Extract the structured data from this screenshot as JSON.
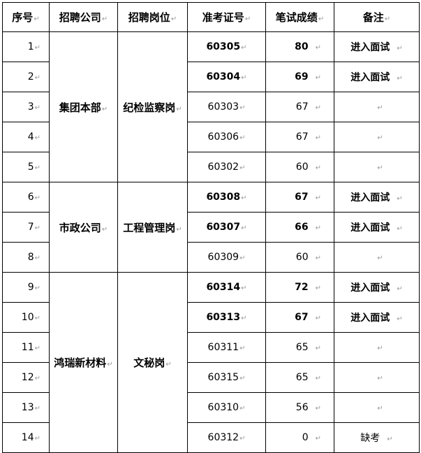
{
  "headers": [
    "序号",
    "招聘公司",
    "招聘岗位",
    "准考证号",
    "笔试成绩",
    "备注"
  ],
  "groups": [
    {
      "company": "集团本部",
      "position": "纪检监察岗",
      "rows": [
        {
          "no": "1",
          "id": "60305",
          "score": "80",
          "note": "进入面试"
        },
        {
          "no": "2",
          "id": "60304",
          "score": "69",
          "note": "进入面试"
        },
        {
          "no": "3",
          "id": "60303",
          "score": "67",
          "note": ""
        },
        {
          "no": "4",
          "id": "60306",
          "score": "67",
          "note": ""
        },
        {
          "no": "5",
          "id": "60302",
          "score": "60",
          "note": ""
        }
      ]
    },
    {
      "company": "市政公司",
      "position": "工程管理岗",
      "rows": [
        {
          "no": "6",
          "id": "60308",
          "score": "67",
          "note": "进入面试"
        },
        {
          "no": "7",
          "id": "60307",
          "score": "66",
          "note": "进入面试"
        },
        {
          "no": "8",
          "id": "60309",
          "score": "60",
          "note": ""
        }
      ]
    },
    {
      "company": "鸿瑞新材料",
      "position": "文秘岗",
      "rows": [
        {
          "no": "9",
          "id": "60314",
          "score": "72",
          "note": "进入面试"
        },
        {
          "no": "10",
          "id": "60313",
          "score": "67",
          "note": "进入面试"
        },
        {
          "no": "11",
          "id": "60311",
          "score": "65",
          "note": ""
        },
        {
          "no": "12",
          "id": "60315",
          "score": "65",
          "note": ""
        },
        {
          "no": "13",
          "id": "60310",
          "score": "56",
          "note": ""
        },
        {
          "no": "14",
          "id": "60312",
          "score": "0",
          "note": "缺考"
        }
      ]
    }
  ]
}
